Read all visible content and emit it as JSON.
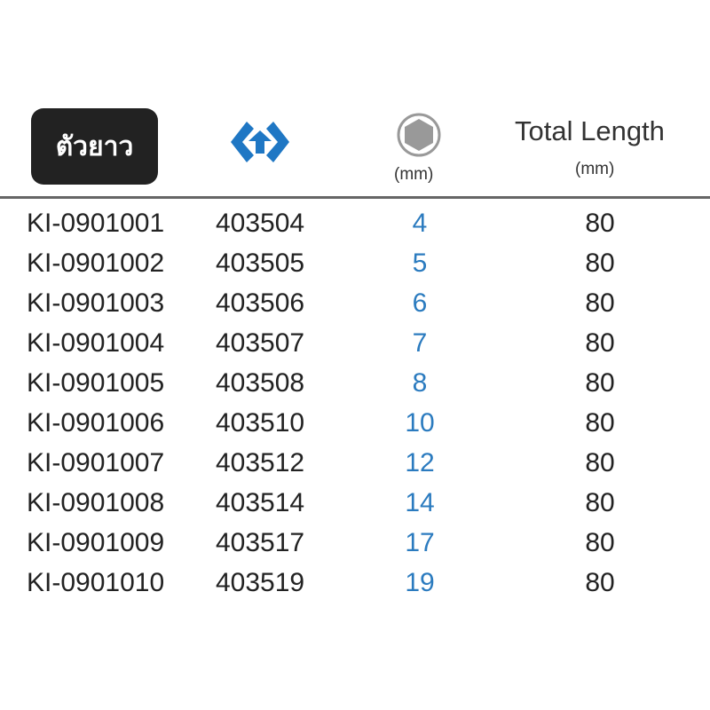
{
  "header": {
    "badge_label": "ตัวยาว",
    "logo_icon": "blue-brand-hex-arrow-icon",
    "size_icon": "hexagon-icon",
    "size_unit": "(mm)",
    "length_title": "Total Length",
    "length_unit": "(mm)"
  },
  "colors": {
    "accent": "#1f77c4",
    "size_text": "#2b7bbf",
    "badge_bg": "#222222"
  },
  "rows": [
    {
      "code": "KI-0901001",
      "ref": "403504",
      "size": "4",
      "length": "80"
    },
    {
      "code": "KI-0901002",
      "ref": "403505",
      "size": "5",
      "length": "80"
    },
    {
      "code": "KI-0901003",
      "ref": "403506",
      "size": "6",
      "length": "80"
    },
    {
      "code": "KI-0901004",
      "ref": "403507",
      "size": "7",
      "length": "80"
    },
    {
      "code": "KI-0901005",
      "ref": "403508",
      "size": "8",
      "length": "80"
    },
    {
      "code": "KI-0901006",
      "ref": "403510",
      "size": "10",
      "length": "80"
    },
    {
      "code": "KI-0901007",
      "ref": "403512",
      "size": "12",
      "length": "80"
    },
    {
      "code": "KI-0901008",
      "ref": "403514",
      "size": "14",
      "length": "80"
    },
    {
      "code": "KI-0901009",
      "ref": "403517",
      "size": "17",
      "length": "80"
    },
    {
      "code": "KI-0901010",
      "ref": "403519",
      "size": "19",
      "length": "80"
    }
  ]
}
